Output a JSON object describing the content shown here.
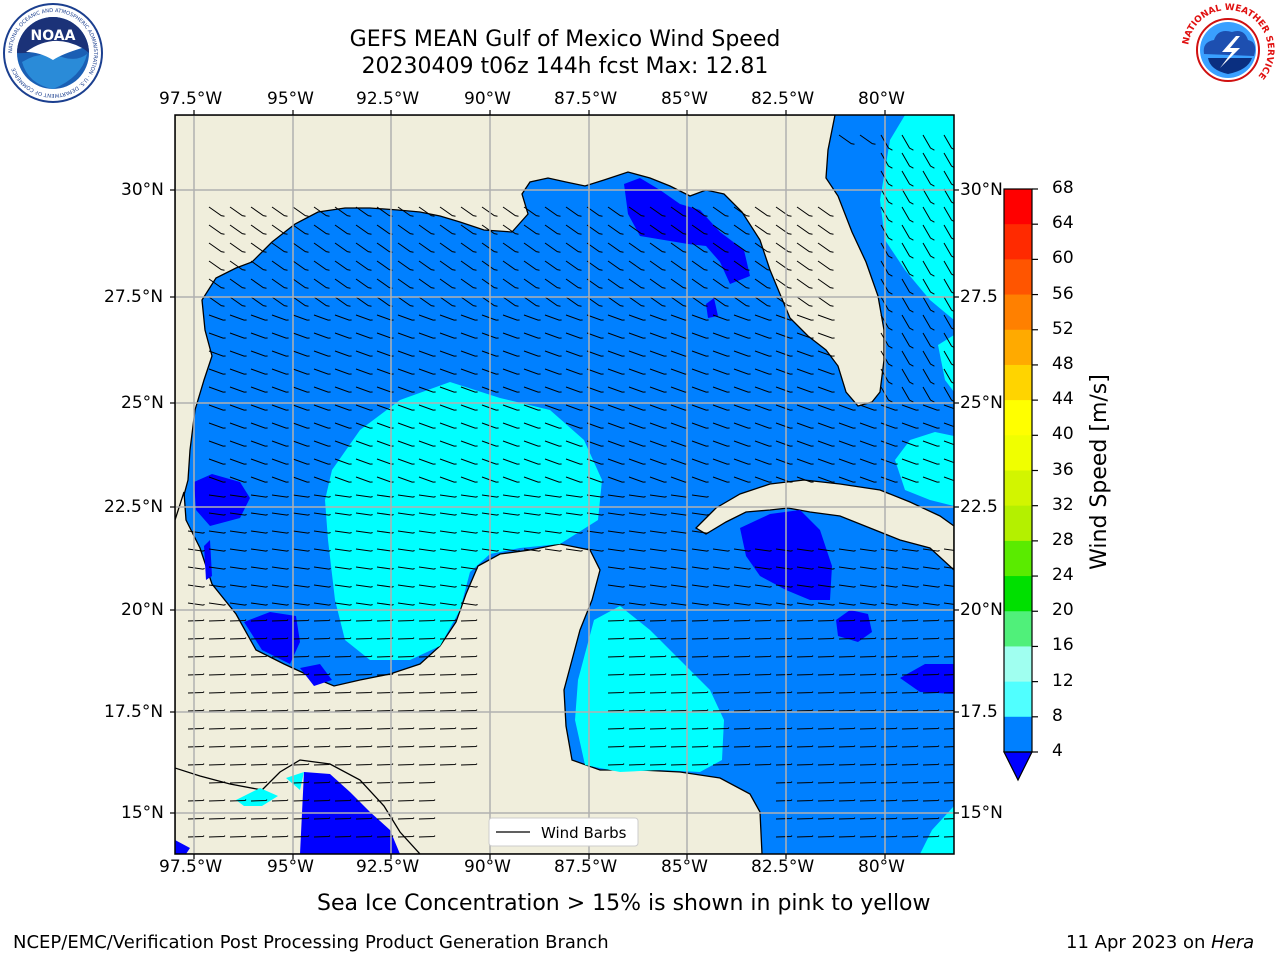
{
  "title_line1": "GEFS MEAN Gulf of Mexico Wind Speed",
  "title_line2": "20230409 t06z 144h fcst   Max: 12.81",
  "longitude_ticks": [
    "97.5°W",
    "95°W",
    "92.5°W",
    "90°W",
    "87.5°W",
    "85°W",
    "82.5°W",
    "80°W"
  ],
  "latitude_ticks": [
    "30°N",
    "27.5°N",
    "25°N",
    "22.5°N",
    "20°N",
    "17.5°N",
    "15°N"
  ],
  "latitude_ticks_right": [
    "30°N",
    "27.5",
    "25°N",
    "22.5",
    "20°N",
    "17.5",
    "15°N"
  ],
  "legend": {
    "label": "Wind Barbs"
  },
  "colorbar": {
    "label": "Wind Speed [m/s]",
    "ticks": [
      "68",
      "64",
      "60",
      "56",
      "52",
      "48",
      "44",
      "40",
      "36",
      "32",
      "28",
      "24",
      "20",
      "16",
      "12",
      "8",
      "4"
    ],
    "colors": [
      "#ff0000",
      "#ff2a00",
      "#ff5500",
      "#ff8000",
      "#ffaa00",
      "#ffd400",
      "#ffff00",
      "#f0ff00",
      "#d2f500",
      "#b4f000",
      "#5aeb00",
      "#00e000",
      "#50f07a",
      "#a0fff0",
      "#50ffff",
      "#00ffff",
      "#0080ff"
    ],
    "under_color": "#0000ff"
  },
  "colors": {
    "land": "#f0eedc",
    "band_4_8": "#0080ff",
    "band_8_12": "#00ffff",
    "band_under": "#0000ff",
    "grid": "#b0b0b0"
  },
  "ice_note": "Sea Ice Concentration > 15% is shown in pink to yellow",
  "footer_left": "NCEP/EMC/Verification Post Processing Product Generation Branch",
  "footer_right_date": "11 Apr 2023 on ",
  "footer_right_machine": "Hera",
  "logos": {
    "noaa": {
      "text": "NOAA",
      "ring_text": "NATIONAL OCEANIC AND ATMOSPHERIC ADMINISTRATION · U.S. DEPARTMENT OF COMMERCE"
    },
    "nws": {
      "ring_text": "NATIONAL WEATHER SERVICE"
    }
  }
}
